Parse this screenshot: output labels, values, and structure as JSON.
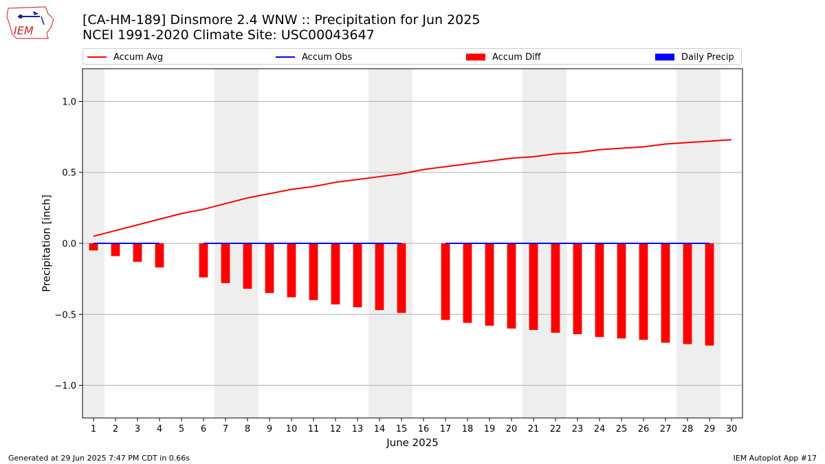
{
  "header": {
    "title_line1": "[CA-HM-189] Dinsmore 2.4 WNW :: Precipitation for Jun 2025",
    "title_line2": "NCEI 1991-2020 Climate Site: USC00043647",
    "logo_text": "IEM"
  },
  "legend": {
    "items": [
      {
        "label": "Accum Avg",
        "color": "#ff0000",
        "kind": "line"
      },
      {
        "label": "Accum Obs",
        "color": "#0000ff",
        "kind": "line"
      },
      {
        "label": "Accum Diff",
        "color": "#ff0000",
        "kind": "box"
      },
      {
        "label": "Daily Precip",
        "color": "#0000ff",
        "kind": "box"
      }
    ]
  },
  "footer": {
    "left": "Generated at 29 Jun 2025 7:47 PM CDT in 0.66s",
    "right": "IEM Autoplot App #17"
  },
  "chart_data": {
    "type": "bar",
    "title": "[CA-HM-189] Dinsmore 2.4 WNW :: Precipitation for Jun 2025",
    "xlabel": "June 2025",
    "ylabel": "Precipitation [inch]",
    "ylim": [
      -1.23,
      1.23
    ],
    "xlim": [
      0.5,
      30.5
    ],
    "yticks": [
      -1.0,
      -0.5,
      0.0,
      0.5,
      1.0
    ],
    "ytick_labels": [
      "−1.0",
      "−0.5",
      "0.0",
      "0.5",
      "1.0"
    ],
    "x": [
      1,
      2,
      3,
      4,
      5,
      6,
      7,
      8,
      9,
      10,
      11,
      12,
      13,
      14,
      15,
      16,
      17,
      18,
      19,
      20,
      21,
      22,
      23,
      24,
      25,
      26,
      27,
      28,
      29,
      30
    ],
    "weekend_shading": [
      [
        0.5,
        1.5
      ],
      [
        6.5,
        8.5
      ],
      [
        13.5,
        15.5
      ],
      [
        20.5,
        22.5
      ],
      [
        27.5,
        29.5
      ]
    ],
    "grid": "horizontal",
    "legend_position": "top",
    "series": [
      {
        "name": "Accum Avg",
        "type": "line",
        "color": "#ff0000",
        "x": [
          1,
          2,
          3,
          4,
          5,
          6,
          7,
          8,
          9,
          10,
          11,
          12,
          13,
          14,
          15,
          16,
          17,
          18,
          19,
          20,
          21,
          22,
          23,
          24,
          25,
          26,
          27,
          28,
          29,
          30
        ],
        "values": [
          0.05,
          0.09,
          0.13,
          0.17,
          0.21,
          0.24,
          0.28,
          0.32,
          0.35,
          0.38,
          0.4,
          0.43,
          0.45,
          0.47,
          0.49,
          0.52,
          0.54,
          0.56,
          0.58,
          0.6,
          0.61,
          0.63,
          0.64,
          0.66,
          0.67,
          0.68,
          0.7,
          0.71,
          0.72,
          0.73
        ]
      },
      {
        "name": "Accum Obs",
        "type": "line",
        "color": "#0000ff",
        "segments": [
          {
            "x": [
              1,
              2,
              3,
              4
            ],
            "values": [
              0,
              0,
              0,
              0
            ]
          },
          {
            "x": [
              6,
              7,
              8,
              9,
              10,
              11,
              12,
              13,
              14,
              15
            ],
            "values": [
              0,
              0,
              0,
              0,
              0,
              0,
              0,
              0,
              0,
              0
            ]
          },
          {
            "x": [
              17,
              18,
              19,
              20,
              21,
              22,
              23,
              24,
              25,
              26,
              27,
              28,
              29
            ],
            "values": [
              0,
              0,
              0,
              0,
              0,
              0,
              0,
              0,
              0,
              0,
              0,
              0,
              0
            ]
          }
        ]
      },
      {
        "name": "Accum Diff",
        "type": "bar",
        "color": "#ff0000",
        "x": [
          1,
          2,
          3,
          4,
          6,
          7,
          8,
          9,
          10,
          11,
          12,
          13,
          14,
          15,
          17,
          18,
          19,
          20,
          21,
          22,
          23,
          24,
          25,
          26,
          27,
          28,
          29
        ],
        "values": [
          -0.05,
          -0.09,
          -0.13,
          -0.17,
          -0.24,
          -0.28,
          -0.32,
          -0.35,
          -0.38,
          -0.4,
          -0.43,
          -0.45,
          -0.47,
          -0.49,
          -0.54,
          -0.56,
          -0.58,
          -0.6,
          -0.61,
          -0.63,
          -0.64,
          -0.66,
          -0.67,
          -0.68,
          -0.7,
          -0.71,
          -0.72
        ]
      },
      {
        "name": "Daily Precip",
        "type": "bar",
        "color": "#0000ff",
        "x": [],
        "values": []
      }
    ]
  }
}
